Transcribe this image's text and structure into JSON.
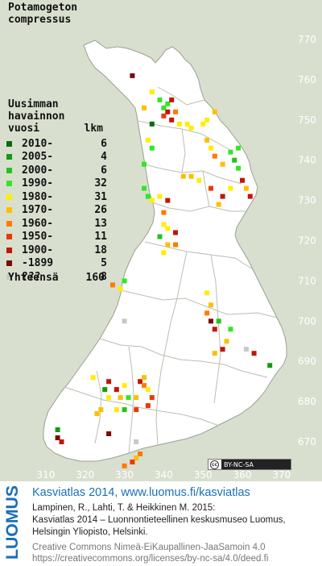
{
  "species": [
    "Potamogeton",
    "compressus"
  ],
  "legend": {
    "title_lines": [
      "Uusimman",
      "havainnon"
    ],
    "col_year": "vuosi",
    "col_count": "lkm",
    "rows": [
      {
        "label": "2010-",
        "count": "6",
        "color": "#0a6b0a"
      },
      {
        "label": "2005-",
        "count": "4",
        "color": "#129b12"
      },
      {
        "label": "2000-",
        "count": "6",
        "color": "#22c41e"
      },
      {
        "label": "1990-",
        "count": "32",
        "color": "#33e526"
      },
      {
        "label": "1980-",
        "count": "31",
        "color": "#ffee00"
      },
      {
        "label": "1970-",
        "count": "26",
        "color": "#ffbe00"
      },
      {
        "label": "1960-",
        "count": "13",
        "color": "#ff7a00"
      },
      {
        "label": "1950-",
        "count": "11",
        "color": "#e83a08"
      },
      {
        "label": "1900-",
        "count": "18",
        "color": "#c41406"
      },
      {
        "label": "-1899",
        "count": "5",
        "color": "#7a0a06"
      },
      {
        "label": "???",
        "count": "8",
        "color": "#c8c8c8"
      }
    ],
    "total_label": "Yhteensä",
    "total_count": "160"
  },
  "axes": {
    "y_ticks": [
      "770",
      "760",
      "750",
      "740",
      "730",
      "720",
      "710",
      "700",
      "690",
      "680",
      "670"
    ],
    "x_ticks": [
      "310",
      "320",
      "330",
      "340",
      "350",
      "360",
      "370"
    ]
  },
  "license_badge": {
    "cc": "cc",
    "text": "BY-NC-SA"
  },
  "footer": {
    "logo_text": "LUOMUS",
    "title": "Kasviatlas 2014, www.luomus.fi/kasviatlas",
    "citation_1": "Lampinen, R., Lahti, T. & Heikkinen M. 2015:",
    "citation_2": "Kasviatlas 2014 – Luonnontieteellinen keskusmuseo Luomus,",
    "citation_3": "Helsingin Yliopisto, Helsinki.",
    "license_1": "Creative Commons Nimeä-EiKaupallinen-JaaSamoin 4.0",
    "license_2": "https://creativecommons.org/licenses/by-nc-sa/4.0/deed.fi"
  },
  "colors": {
    "background": "#d9dfcf",
    "land": "#ffffff",
    "borders": "#b9bfb2",
    "axis_text": "#ffffff",
    "brand_blue": "#1a6fb7"
  },
  "observations": [
    {
      "e": 332,
      "n": 761,
      "c": 9
    },
    {
      "e": 335,
      "n": 753,
      "c": 5
    },
    {
      "e": 337,
      "n": 757,
      "c": 4
    },
    {
      "e": 339,
      "n": 755,
      "c": 3
    },
    {
      "e": 340,
      "n": 753,
      "c": 3
    },
    {
      "e": 341,
      "n": 752,
      "c": 8
    },
    {
      "e": 340,
      "n": 751,
      "c": 7
    },
    {
      "e": 341,
      "n": 754,
      "c": 3
    },
    {
      "e": 342,
      "n": 755,
      "c": 8
    },
    {
      "e": 343,
      "n": 752,
      "c": 6
    },
    {
      "e": 342,
      "n": 750,
      "c": 8
    },
    {
      "e": 344,
      "n": 749,
      "c": 4
    },
    {
      "e": 337,
      "n": 749,
      "c": 0
    },
    {
      "e": 346,
      "n": 749,
      "c": 4
    },
    {
      "e": 347,
      "n": 748,
      "c": 4
    },
    {
      "e": 350,
      "n": 749,
      "c": 4
    },
    {
      "e": 351,
      "n": 750,
      "c": 4
    },
    {
      "e": 353,
      "n": 752,
      "c": 5
    },
    {
      "e": 336,
      "n": 745,
      "c": 4
    },
    {
      "e": 337,
      "n": 743,
      "c": 3
    },
    {
      "e": 335,
      "n": 739,
      "c": 3
    },
    {
      "e": 351,
      "n": 745,
      "c": 5
    },
    {
      "e": 352,
      "n": 743,
      "c": 4
    },
    {
      "e": 353,
      "n": 741,
      "c": 6
    },
    {
      "e": 355,
      "n": 739,
      "c": 5
    },
    {
      "e": 357,
      "n": 742,
      "c": 3
    },
    {
      "e": 358,
      "n": 740,
      "c": 2
    },
    {
      "e": 359,
      "n": 743,
      "c": 3
    },
    {
      "e": 359,
      "n": 738,
      "c": 3
    },
    {
      "e": 360,
      "n": 735,
      "c": 8
    },
    {
      "e": 361,
      "n": 733,
      "c": 5
    },
    {
      "e": 362,
      "n": 731,
      "c": 8
    },
    {
      "e": 357,
      "n": 733,
      "c": 4
    },
    {
      "e": 345,
      "n": 736,
      "c": 5
    },
    {
      "e": 347,
      "n": 736,
      "c": 5
    },
    {
      "e": 349,
      "n": 735,
      "c": 4
    },
    {
      "e": 352,
      "n": 733,
      "c": 7
    },
    {
      "e": 355,
      "n": 731,
      "c": 8
    },
    {
      "e": 354,
      "n": 729,
      "c": 5
    },
    {
      "e": 335,
      "n": 733,
      "c": 3
    },
    {
      "e": 336,
      "n": 731,
      "c": 3
    },
    {
      "e": 337,
      "n": 730,
      "c": 4
    },
    {
      "e": 339,
      "n": 731,
      "c": 4
    },
    {
      "e": 341,
      "n": 730,
      "c": 8
    },
    {
      "e": 340,
      "n": 727,
      "c": 6
    },
    {
      "e": 339,
      "n": 721,
      "c": 2
    },
    {
      "e": 341,
      "n": 719,
      "c": 5
    },
    {
      "e": 340,
      "n": 717,
      "c": 4
    },
    {
      "e": 341,
      "n": 723,
      "c": 4
    },
    {
      "e": 340,
      "n": 724,
      "c": 4
    },
    {
      "e": 343,
      "n": 722,
      "c": 8
    },
    {
      "e": 343,
      "n": 719,
      "c": 6
    },
    {
      "e": 327,
      "n": 709,
      "c": 6
    },
    {
      "e": 329,
      "n": 708,
      "c": 4
    },
    {
      "e": 330,
      "n": 710,
      "c": 3
    },
    {
      "e": 330,
      "n": 700,
      "c": 10
    },
    {
      "e": 351,
      "n": 707,
      "c": 4
    },
    {
      "e": 352,
      "n": 704,
      "c": 5
    },
    {
      "e": 351,
      "n": 702,
      "c": 6
    },
    {
      "e": 352,
      "n": 700,
      "c": 9
    },
    {
      "e": 353,
      "n": 698,
      "c": 8
    },
    {
      "e": 354,
      "n": 700,
      "c": 2
    },
    {
      "e": 357,
      "n": 698,
      "c": 3
    },
    {
      "e": 356,
      "n": 695,
      "c": 5
    },
    {
      "e": 355,
      "n": 693,
      "c": 8
    },
    {
      "e": 353,
      "n": 692,
      "c": 5
    },
    {
      "e": 361,
      "n": 693,
      "c": 10
    },
    {
      "e": 363,
      "n": 692,
      "c": 8
    },
    {
      "e": 367,
      "n": 689,
      "c": 1
    },
    {
      "e": 322,
      "n": 686,
      "c": 4
    },
    {
      "e": 325,
      "n": 683,
      "c": 1
    },
    {
      "e": 326,
      "n": 681,
      "c": 4
    },
    {
      "e": 326,
      "n": 685,
      "c": 8
    },
    {
      "e": 328,
      "n": 683,
      "c": 8
    },
    {
      "e": 329,
      "n": 681,
      "c": 5
    },
    {
      "e": 330,
      "n": 684,
      "c": 4
    },
    {
      "e": 331,
      "n": 681,
      "c": 3
    },
    {
      "e": 333,
      "n": 681,
      "c": 5
    },
    {
      "e": 334,
      "n": 685,
      "c": 8
    },
    {
      "e": 335,
      "n": 684,
      "c": 6
    },
    {
      "e": 335,
      "n": 686,
      "c": 5
    },
    {
      "e": 336,
      "n": 683,
      "c": 4
    },
    {
      "e": 337,
      "n": 681,
      "c": 7
    },
    {
      "e": 336,
      "n": 679,
      "c": 7
    },
    {
      "e": 333,
      "n": 678,
      "c": 7
    },
    {
      "e": 330,
      "n": 678,
      "c": 2
    },
    {
      "e": 328,
      "n": 678,
      "c": 4
    },
    {
      "e": 324,
      "n": 678,
      "c": 5
    },
    {
      "e": 323,
      "n": 677,
      "c": 5
    },
    {
      "e": 313,
      "n": 673,
      "c": 1
    },
    {
      "e": 313,
      "n": 671,
      "c": 9
    },
    {
      "e": 314,
      "n": 670,
      "c": 8
    },
    {
      "e": 326,
      "n": 672,
      "c": 9
    },
    {
      "e": 333,
      "n": 670,
      "c": 10
    },
    {
      "e": 334,
      "n": 667,
      "c": 6
    },
    {
      "e": 333,
      "n": 666,
      "c": 5
    },
    {
      "e": 332,
      "n": 665,
      "c": 7
    },
    {
      "e": 330,
      "n": 664,
      "c": 6
    }
  ]
}
